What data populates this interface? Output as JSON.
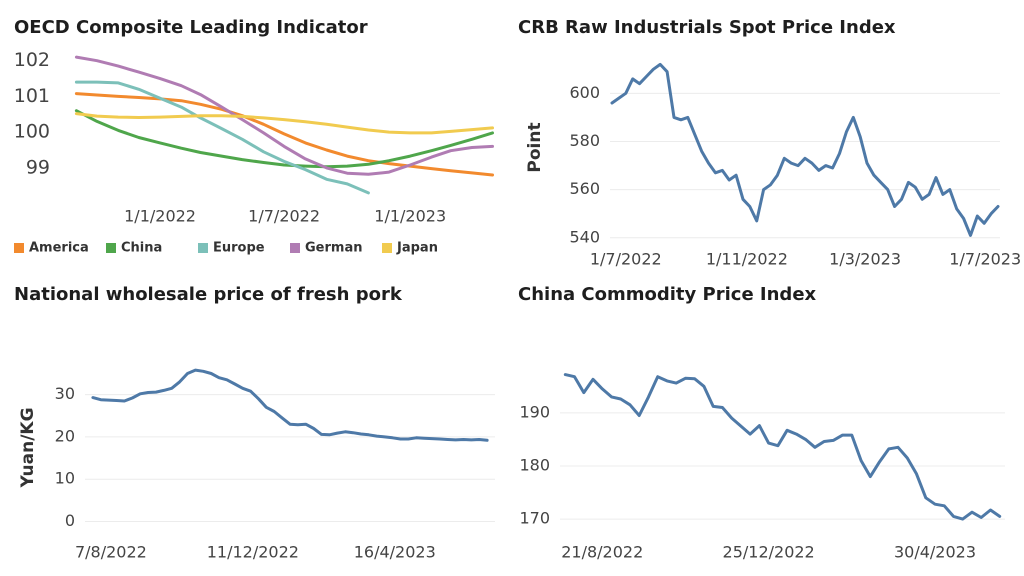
{
  "chart_data": [
    {
      "type": "line",
      "title": "OECD Composite Leading Indicator",
      "x": [
        "1/9/2021",
        "1/10/2021",
        "1/11/2021",
        "1/12/2021",
        "1/1/2022",
        "1/2/2022",
        "1/3/2022",
        "1/4/2022",
        "1/5/2022",
        "1/6/2022",
        "1/7/2022",
        "1/8/2022",
        "1/9/2022",
        "1/10/2022",
        "1/11/2022",
        "1/12/2022",
        "1/1/2023",
        "1/2/2023",
        "1/3/2023",
        "1/4/2023",
        "1/5/2023"
      ],
      "series": [
        {
          "name": "America",
          "color": "#f28a2e",
          "values": [
            101.08,
            101.04,
            101.0,
            100.97,
            100.93,
            100.88,
            100.78,
            100.64,
            100.46,
            100.22,
            99.95,
            99.7,
            99.5,
            99.33,
            99.2,
            99.12,
            99.05,
            98.98,
            98.92,
            98.86,
            98.8
          ]
        },
        {
          "name": "China",
          "color": "#4fa64b",
          "values": [
            100.6,
            100.3,
            100.05,
            99.85,
            99.7,
            99.55,
            99.43,
            99.33,
            99.23,
            99.15,
            99.08,
            99.05,
            99.03,
            99.05,
            99.1,
            99.2,
            99.33,
            99.48,
            99.63,
            99.8,
            99.98
          ]
        },
        {
          "name": "Europe",
          "color": "#7cc0b9",
          "values": [
            101.4,
            101.4,
            101.38,
            101.2,
            100.95,
            100.7,
            100.4,
            100.1,
            99.8,
            99.45,
            99.18,
            98.95,
            98.68,
            98.55,
            98.3,
            null,
            null,
            null,
            null,
            null,
            null
          ]
        },
        {
          "name": "German",
          "color": "#b07cb3",
          "values": [
            102.1,
            102.0,
            101.85,
            101.68,
            101.5,
            101.3,
            101.05,
            100.7,
            100.35,
            99.98,
            99.6,
            99.25,
            99.0,
            98.85,
            98.82,
            98.88,
            99.08,
            99.3,
            99.48,
            99.57,
            99.6
          ]
        },
        {
          "name": "Japan",
          "color": "#f1cb4f",
          "values": [
            100.52,
            100.45,
            100.42,
            100.41,
            100.42,
            100.44,
            100.46,
            100.46,
            100.44,
            100.4,
            100.35,
            100.29,
            100.22,
            100.14,
            100.06,
            100.0,
            99.98,
            99.98,
            100.02,
            100.07,
            100.12
          ]
        }
      ],
      "xlim": [
        "8/8/2021",
        "12/5/2023"
      ],
      "xticks": [
        "1/1/2022",
        "1/7/2022",
        "1/1/2023"
      ],
      "ylim": [
        98.1,
        102.3
      ],
      "yticks": [
        99,
        100,
        101,
        102
      ],
      "grid": false,
      "legend": "bottom"
    },
    {
      "type": "line",
      "title": "CRB Raw Industrials Spot Price Index",
      "y_label": "Point",
      "x": [
        "17/6/2022",
        "24/6/2022",
        "1/7/2022",
        "8/7/2022",
        "15/7/2022",
        "22/7/2022",
        "29/7/2022",
        "5/8/2022",
        "12/8/2022",
        "19/8/2022",
        "26/8/2022",
        "2/9/2022",
        "9/9/2022",
        "16/9/2022",
        "23/9/2022",
        "30/9/2022",
        "7/10/2022",
        "14/10/2022",
        "21/10/2022",
        "28/10/2022",
        "4/11/2022",
        "11/11/2022",
        "18/11/2022",
        "25/11/2022",
        "2/12/2022",
        "9/12/2022",
        "16/12/2022",
        "23/12/2022",
        "30/12/2022",
        "6/1/2023",
        "13/1/2023",
        "20/1/2023",
        "27/1/2023",
        "3/2/2023",
        "10/2/2023",
        "17/2/2023",
        "24/2/2023",
        "3/3/2023",
        "10/3/2023",
        "17/3/2023",
        "24/3/2023",
        "31/3/2023",
        "7/4/2023",
        "14/4/2023",
        "21/4/2023",
        "28/4/2023",
        "5/5/2023",
        "12/5/2023",
        "19/5/2023",
        "26/5/2023",
        "2/6/2023",
        "9/6/2023",
        "16/6/2023",
        "23/6/2023",
        "30/6/2023",
        "7/7/2023",
        "14/7/2023"
      ],
      "series": [
        {
          "color": "#4e79a7",
          "values": [
            596,
            598,
            600,
            606,
            604,
            607,
            610,
            612,
            609,
            590,
            589,
            590,
            583,
            576,
            571,
            567,
            568,
            564,
            566,
            556,
            553,
            547,
            560,
            562,
            566,
            573,
            571,
            570,
            573,
            571,
            568,
            570,
            569,
            575,
            584,
            590,
            582,
            571,
            566,
            563,
            560,
            553,
            556,
            563,
            561,
            556,
            558,
            565,
            558,
            560,
            552,
            548,
            541,
            549,
            546,
            550,
            553
          ]
        }
      ],
      "xlim": [
        "15/6/2022",
        "16/7/2023"
      ],
      "xticks": [
        "1/7/2022",
        "1/11/2022",
        "1/3/2023",
        "1/7/2023"
      ],
      "ylim": [
        537,
        618
      ],
      "yticks": [
        540,
        560,
        580,
        600
      ],
      "grid": true
    },
    {
      "type": "line",
      "title": "National wholesale price of fresh pork",
      "y_label": "Yuan/KG",
      "x": [
        "22/7/2022",
        "29/7/2022",
        "5/8/2022",
        "12/8/2022",
        "19/8/2022",
        "26/8/2022",
        "2/9/2022",
        "9/9/2022",
        "16/9/2022",
        "23/9/2022",
        "30/9/2022",
        "7/10/2022",
        "14/10/2022",
        "21/10/2022",
        "28/10/2022",
        "4/11/2022",
        "11/11/2022",
        "18/11/2022",
        "25/11/2022",
        "2/12/2022",
        "9/12/2022",
        "16/12/2022",
        "23/12/2022",
        "30/12/2022",
        "6/1/2023",
        "13/1/2023",
        "20/1/2023",
        "27/1/2023",
        "3/2/2023",
        "10/2/2023",
        "17/2/2023",
        "24/2/2023",
        "3/3/2023",
        "10/3/2023",
        "17/3/2023",
        "24/3/2023",
        "31/3/2023",
        "7/4/2023",
        "14/4/2023",
        "21/4/2023",
        "28/4/2023",
        "5/5/2023",
        "12/5/2023",
        "19/5/2023",
        "26/5/2023",
        "2/6/2023",
        "9/6/2023",
        "16/6/2023",
        "23/6/2023",
        "30/6/2023",
        "7/7/2023"
      ],
      "series": [
        {
          "color": "#4e79a7",
          "values": [
            29.3,
            28.8,
            28.7,
            28.6,
            28.5,
            29.2,
            30.2,
            30.5,
            30.6,
            31,
            31.5,
            33,
            35,
            35.8,
            35.5,
            35,
            34,
            33.5,
            32.5,
            31.5,
            30.8,
            29,
            27,
            26,
            24.5,
            23,
            22.9,
            23,
            22,
            20.6,
            20.5,
            20.9,
            21.2,
            21,
            20.7,
            20.5,
            20.2,
            20,
            19.8,
            19.5,
            19.5,
            19.8,
            19.7,
            19.6,
            19.5,
            19.4,
            19.3,
            19.4,
            19.3,
            19.4,
            19.2
          ]
        }
      ],
      "xlim": [
        "15/7/2022",
        "14/7/2023"
      ],
      "xticks": [
        "7/8/2022",
        "11/12/2022",
        "16/4/2023"
      ],
      "ylim": [
        -2,
        37
      ],
      "yticks": [
        0,
        10,
        20,
        30
      ],
      "grid": true
    },
    {
      "type": "line",
      "title": "China Commodity Price Index",
      "x": [
        "24/7/2022",
        "31/7/2022",
        "7/8/2022",
        "14/8/2022",
        "21/8/2022",
        "28/8/2022",
        "4/9/2022",
        "11/9/2022",
        "18/9/2022",
        "25/9/2022",
        "2/10/2022",
        "9/10/2022",
        "16/10/2022",
        "23/10/2022",
        "30/10/2022",
        "6/11/2022",
        "13/11/2022",
        "20/11/2022",
        "27/11/2022",
        "4/12/2022",
        "11/12/2022",
        "18/12/2022",
        "25/12/2022",
        "1/1/2023",
        "8/1/2023",
        "15/1/2023",
        "22/1/2023",
        "29/1/2023",
        "5/2/2023",
        "12/2/2023",
        "19/2/2023",
        "26/2/2023",
        "5/3/2023",
        "12/3/2023",
        "19/3/2023",
        "26/3/2023",
        "2/4/2023",
        "9/4/2023",
        "16/4/2023",
        "23/4/2023",
        "30/4/2023",
        "7/5/2023",
        "14/5/2023",
        "21/5/2023",
        "28/5/2023",
        "4/6/2023",
        "11/6/2023",
        "18/6/2023"
      ],
      "series": [
        {
          "color": "#4e79a7",
          "values": [
            197.2,
            196.8,
            193.8,
            196.3,
            194.5,
            193,
            192.6,
            191.5,
            189.5,
            193,
            196.8,
            196,
            195.6,
            196.5,
            196.4,
            195,
            191.2,
            191,
            189,
            187.5,
            186,
            187.6,
            184.3,
            183.8,
            186.7,
            186,
            185,
            183.5,
            184.6,
            184.8,
            185.8,
            185.8,
            181,
            178,
            180.8,
            183.2,
            183.5,
            181.5,
            178.5,
            174,
            172.8,
            172.5,
            170.5,
            170,
            171.3,
            170.3,
            171.7,
            170.5
          ]
        }
      ],
      "xlim": [
        "20/7/2022",
        "22/6/2023"
      ],
      "xticks": [
        "21/8/2022",
        "25/12/2022",
        "30/4/2023"
      ],
      "ylim": [
        167,
        199
      ],
      "yticks": [
        170,
        180,
        190
      ],
      "grid": true
    }
  ]
}
